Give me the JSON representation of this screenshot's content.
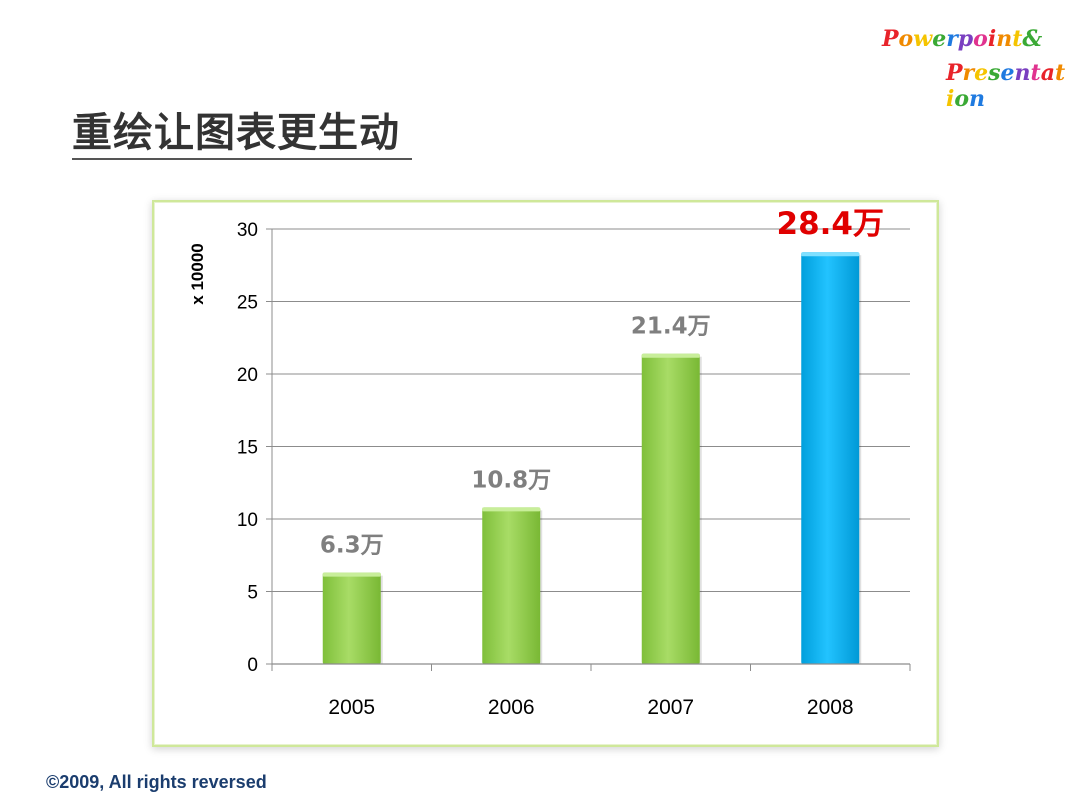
{
  "header": {
    "title": "重绘让图表更生动",
    "logo_line1": "Powerpoint &",
    "logo_line2": "Presentation"
  },
  "footer": {
    "copyright": "©2009, All rights reversed"
  },
  "colors": {
    "bar_default": "#92d050",
    "bar_highlight": "#00b0f0",
    "label_default": "#7f7f7f",
    "label_highlight": "#e00000",
    "frame_border": "#cfe89a"
  },
  "chart_data": {
    "type": "bar",
    "categories": [
      "2005",
      "2006",
      "2007",
      "2008"
    ],
    "values": [
      6.3,
      10.8,
      21.4,
      28.4
    ],
    "data_labels": [
      "6.3万",
      "10.8万",
      "21.4万",
      "28.4万"
    ],
    "highlight_index": 3,
    "ylabel": "x 10000",
    "xlabel": "",
    "ylim": [
      0,
      30
    ],
    "yticks": [
      0,
      5,
      10,
      15,
      20,
      25,
      30
    ],
    "grid": true,
    "legend": "none"
  }
}
